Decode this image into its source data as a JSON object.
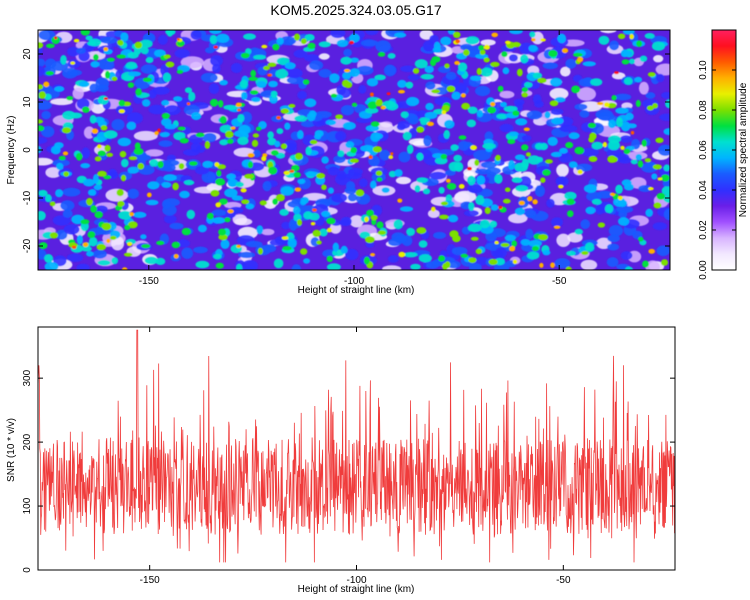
{
  "title": "KOM5.2025.324.03.05.G17",
  "chart_data": [
    {
      "type": "heatmap",
      "title": "KOM5.2025.324.03.05.G17",
      "xlabel": "Height of straight line (km)",
      "ylabel": "Frequency (Hz)",
      "xlim": [
        -177,
        -23
      ],
      "ylim": [
        -25,
        25
      ],
      "xticks": [
        -150,
        -100,
        -50
      ],
      "yticks": [
        -20,
        -10,
        0,
        10,
        20
      ],
      "colorbar": {
        "label": "Normalized spectral amplitude",
        "range": [
          0,
          0.12
        ],
        "ticks": [
          "0.00",
          "0.02",
          "0.04",
          "0.06",
          "0.08",
          "0.10"
        ],
        "colors": [
          "#ffffff",
          "#f2e8ff",
          "#d8b4ff",
          "#a050ff",
          "#6a1fe8",
          "#3030ff",
          "#1a5cff",
          "#00b4ff",
          "#00e0d0",
          "#00e040",
          "#7ce000",
          "#e8f000",
          "#ffb000",
          "#ff5a00",
          "#ff1020",
          "#ff2060"
        ]
      }
    },
    {
      "type": "line",
      "xlabel": "Height of straight line (km)",
      "ylabel": "SNR (10 * v/v)",
      "xlim": [
        -177,
        -23
      ],
      "ylim": [
        0,
        380
      ],
      "xticks": [
        -150,
        -100,
        -50
      ],
      "yticks": [
        0,
        100,
        200,
        300
      ],
      "series": [
        {
          "name": "SNR",
          "color": "#f03c3c",
          "mean": 130,
          "peak": 375,
          "peak_x": -153
        }
      ]
    }
  ]
}
